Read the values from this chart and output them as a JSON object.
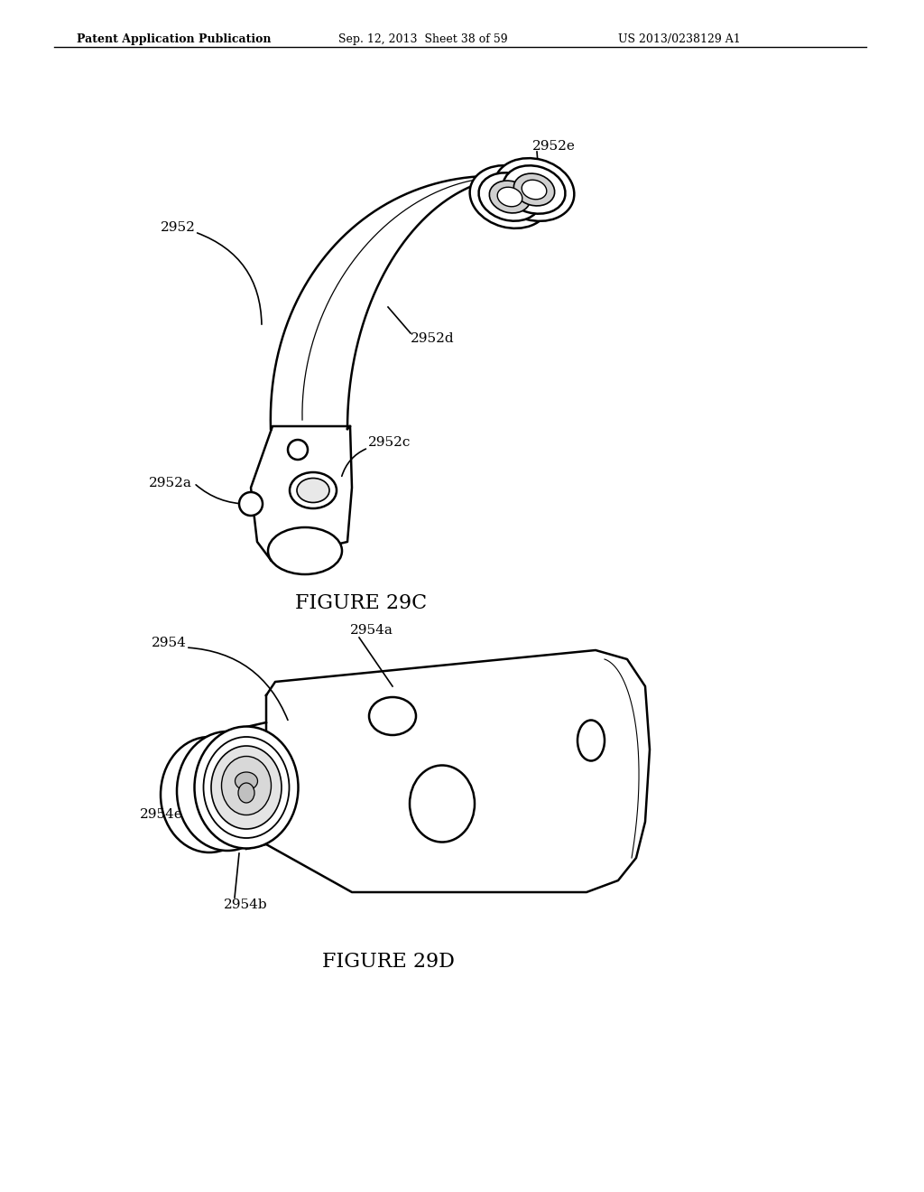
{
  "bg_color": "#ffffff",
  "line_color": "#000000",
  "header_left": "Patent Application Publication",
  "header_mid": "Sep. 12, 2013  Sheet 38 of 59",
  "header_right": "US 2013/0238129 A1",
  "fig29c_label": "FIGURE 29C",
  "fig29d_label": "FIGURE 29D"
}
